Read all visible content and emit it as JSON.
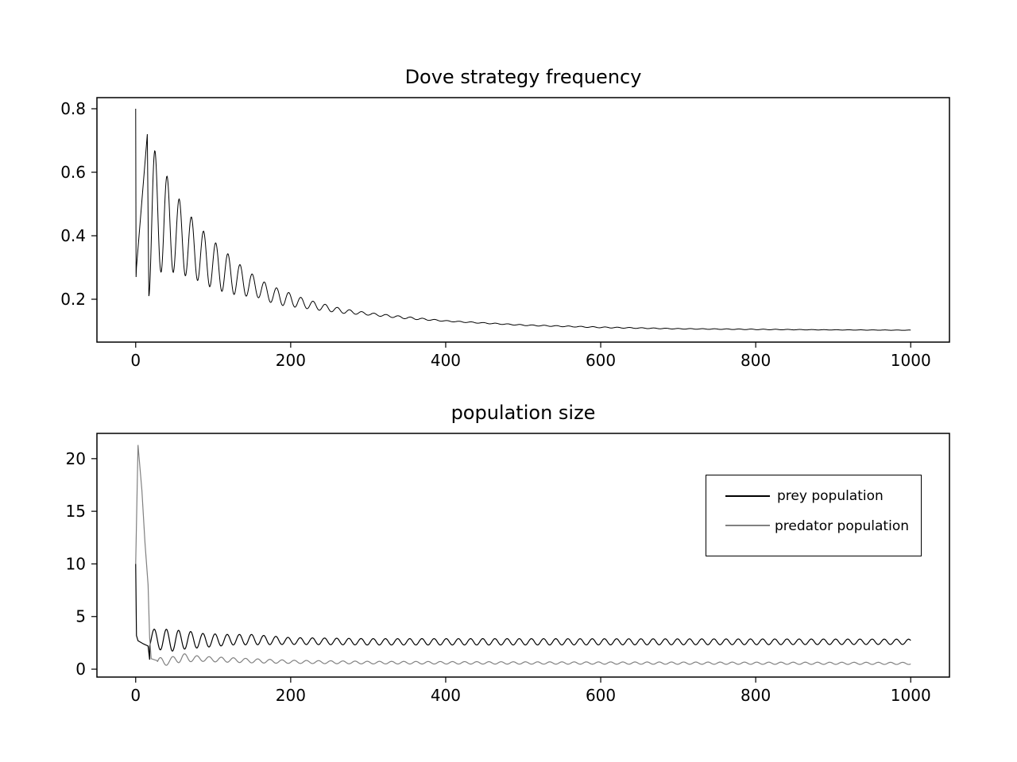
{
  "chart_data": [
    {
      "type": "line",
      "title": "Dove strategy frequency",
      "xlabel": "",
      "ylabel": "",
      "xlim": [
        -50,
        1050
      ],
      "ylim": [
        0.065,
        0.835
      ],
      "xticks": [
        0,
        200,
        400,
        600,
        800,
        1000
      ],
      "yticks": [
        0.2,
        0.4,
        0.6,
        0.8
      ],
      "ytick_labels": [
        "0.2",
        "0.4",
        "0.6",
        "0.8"
      ],
      "grid": false,
      "series": [
        {
          "color": "#000000",
          "start": 0.8,
          "first_min": 0.27,
          "final": 0.103,
          "period": 15.7,
          "peaks": [
            [
              15,
              0.72
            ],
            [
              30,
              0.64
            ],
            [
              46,
              0.56
            ],
            [
              62,
              0.49
            ],
            [
              78,
              0.44
            ],
            [
              93,
              0.4
            ],
            [
              109,
              0.365
            ],
            [
              125,
              0.33
            ],
            [
              141,
              0.295
            ],
            [
              156,
              0.27
            ],
            [
              172,
              0.245
            ],
            [
              188,
              0.23
            ],
            [
              204,
              0.215
            ],
            [
              219,
              0.2
            ],
            [
              235,
              0.19
            ],
            [
              251,
              0.18
            ],
            [
              267,
              0.17
            ],
            [
              300,
              0.158
            ],
            [
              350,
              0.145
            ],
            [
              400,
              0.133
            ],
            [
              500,
              0.12
            ],
            [
              600,
              0.113
            ],
            [
              700,
              0.108
            ],
            [
              800,
              0.106
            ],
            [
              900,
              0.104
            ],
            [
              1000,
              0.103
            ]
          ],
          "troughs": [
            [
              17,
              0.21
            ],
            [
              32,
              0.285
            ],
            [
              48,
              0.285
            ],
            [
              63,
              0.275
            ],
            [
              79,
              0.26
            ],
            [
              95,
              0.24
            ],
            [
              111,
              0.225
            ],
            [
              127,
              0.215
            ],
            [
              142,
              0.21
            ],
            [
              158,
              0.205
            ],
            [
              174,
              0.19
            ],
            [
              190,
              0.18
            ],
            [
              206,
              0.175
            ],
            [
              222,
              0.17
            ],
            [
              238,
              0.165
            ],
            [
              254,
              0.16
            ],
            [
              270,
              0.155
            ],
            [
              300,
              0.15
            ],
            [
              350,
              0.138
            ],
            [
              400,
              0.13
            ],
            [
              500,
              0.117
            ],
            [
              600,
              0.11
            ],
            [
              700,
              0.106
            ],
            [
              800,
              0.104
            ],
            [
              900,
              0.103
            ],
            [
              1000,
              0.102
            ]
          ]
        }
      ]
    },
    {
      "type": "line",
      "title": "population size",
      "xlabel": "",
      "ylabel": "",
      "xlim": [
        -50,
        1050
      ],
      "ylim": [
        -0.75,
        22.4
      ],
      "xticks": [
        0,
        200,
        400,
        600,
        800,
        1000
      ],
      "yticks": [
        0,
        5,
        10,
        15,
        20
      ],
      "ytick_labels": [
        "0",
        "5",
        "10",
        "15",
        "20"
      ],
      "grid": false,
      "legend": "upper-right",
      "series": [
        {
          "name": "prey population",
          "color": "#000000",
          "start": 10,
          "settle_points": [
            [
              1,
              3.2
            ],
            [
              3,
              2.7
            ],
            [
              10,
              2.4
            ],
            [
              16,
              2.2
            ],
            [
              18,
              0.9
            ]
          ],
          "period": 15.7,
          "phase_start": 20,
          "peaks": [
            [
              38,
              3.8
            ],
            [
              54,
              3.7
            ],
            [
              69,
              3.6
            ],
            [
              85,
              3.4
            ],
            [
              101,
              3.35
            ],
            [
              117,
              3.3
            ],
            [
              133,
              3.3
            ],
            [
              149,
              3.3
            ],
            [
              200,
              3.0
            ],
            [
              300,
              2.9
            ],
            [
              500,
              2.9
            ],
            [
              1000,
              2.85
            ]
          ],
          "troughs": [
            [
              25,
              1.9
            ],
            [
              46,
              1.7
            ],
            [
              62,
              1.9
            ],
            [
              77,
              2.0
            ],
            [
              93,
              2.1
            ],
            [
              109,
              2.2
            ],
            [
              125,
              2.3
            ],
            [
              200,
              2.35
            ],
            [
              300,
              2.3
            ],
            [
              500,
              2.3
            ],
            [
              1000,
              2.35
            ]
          ],
          "final": 2.6
        },
        {
          "name": "predator population",
          "color": "#808080",
          "start": 10,
          "peak": [
            3,
            21.3
          ],
          "settle_points": [
            [
              8,
              17
            ],
            [
              12,
              12
            ],
            [
              16,
              8
            ],
            [
              18,
              3
            ],
            [
              20,
              1.0
            ],
            [
              28,
              0.8
            ]
          ],
          "period": 15.7,
          "phase_start": 28,
          "peaks": [
            [
              44,
              1.1
            ],
            [
              60,
              1.5
            ],
            [
              75,
              1.3
            ],
            [
              91,
              1.2
            ],
            [
              107,
              1.15
            ],
            [
              150,
              1.0
            ],
            [
              200,
              0.85
            ],
            [
              300,
              0.75
            ],
            [
              500,
              0.7
            ],
            [
              1000,
              0.65
            ]
          ],
          "troughs": [
            [
              36,
              0.3
            ],
            [
              52,
              0.6
            ],
            [
              68,
              0.7
            ],
            [
              83,
              0.75
            ],
            [
              99,
              0.7
            ],
            [
              150,
              0.6
            ],
            [
              200,
              0.55
            ],
            [
              300,
              0.5
            ],
            [
              500,
              0.48
            ],
            [
              1000,
              0.45
            ]
          ],
          "final": 0.5
        }
      ]
    }
  ]
}
